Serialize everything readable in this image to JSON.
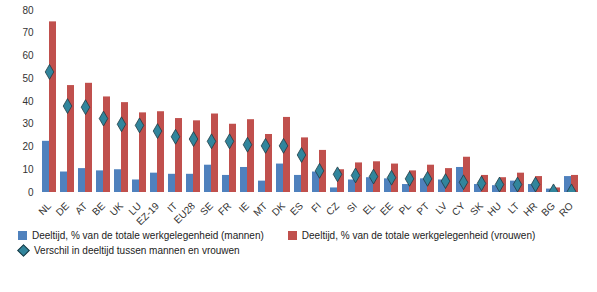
{
  "chart_data": {
    "type": "bar",
    "categories": [
      "NL",
      "DE",
      "AT",
      "BE",
      "UK",
      "LU",
      "EZ-19",
      "IT",
      "EU28",
      "SE",
      "FR",
      "IE",
      "MT",
      "DK",
      "ES",
      "FI",
      "CZ",
      "SI",
      "EL",
      "EE",
      "PL",
      "PT",
      "LV",
      "CY",
      "SK",
      "HU",
      "LT",
      "HR",
      "BG",
      "RO"
    ],
    "series": [
      {
        "name": "Deeltijd, % van de totale werkgelegenheid (mannen)",
        "color": "#4f81bd",
        "type": "bar",
        "values": [
          22.5,
          9,
          10.5,
          9.5,
          10,
          5.5,
          8.5,
          8,
          8,
          12,
          7.5,
          11,
          5,
          12.5,
          7.5,
          9,
          2,
          5.5,
          6.5,
          6,
          3.5,
          6,
          5.5,
          11,
          3.5,
          3,
          5,
          3.5,
          1.5,
          7
        ]
      },
      {
        "name": "Deeltijd, % van de totale werkgelegenheid (vrouwen)",
        "color": "#c0504d",
        "type": "bar",
        "values": [
          75,
          47,
          48,
          42,
          39.5,
          35,
          35.5,
          32.5,
          31.5,
          34.5,
          30,
          32,
          25.5,
          33,
          24,
          18.5,
          10,
          13,
          13.5,
          12.5,
          9.5,
          12,
          10.5,
          15.5,
          7.5,
          6.5,
          8.5,
          7,
          2,
          7.5
        ]
      },
      {
        "name": "Verschil in deeltijd tussen mannen en vrouwen",
        "color": "#31859c",
        "type": "scatter",
        "marker": "diamond",
        "values": [
          53,
          38,
          37.5,
          32.5,
          30,
          29.5,
          27,
          24.5,
          23.5,
          22.5,
          22.5,
          21,
          20.5,
          20.5,
          16.5,
          9.5,
          8,
          7.5,
          7,
          6.5,
          6,
          6,
          5,
          4.5,
          4,
          3.5,
          3.5,
          3.5,
          0.5,
          0.5
        ]
      }
    ],
    "ylim": [
      0,
      80
    ],
    "yticks": [
      0,
      10,
      20,
      30,
      40,
      50,
      60,
      70,
      80
    ],
    "grid": false,
    "legend": "bottom"
  }
}
